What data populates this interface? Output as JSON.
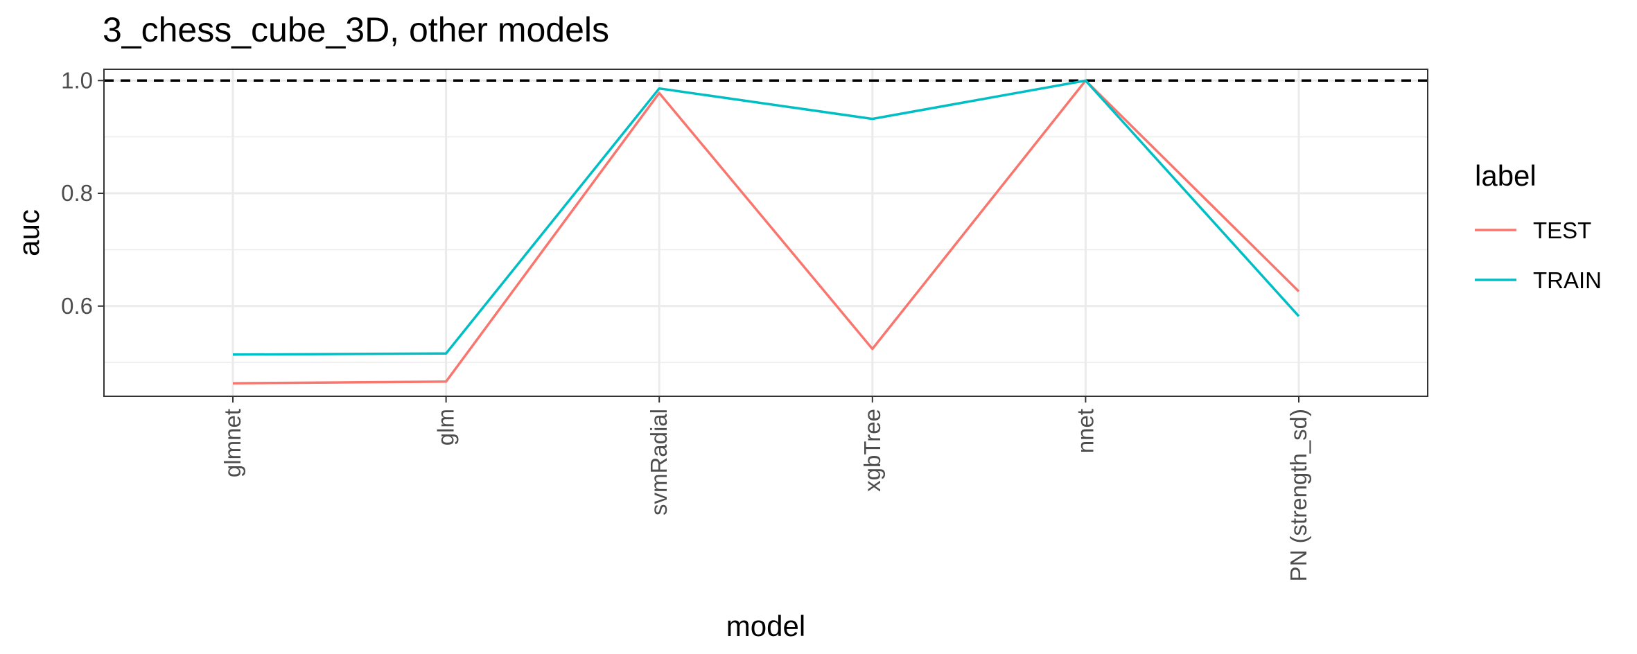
{
  "chart_data": {
    "type": "line",
    "title": "3_chess_cube_3D, other models",
    "xlabel": "model",
    "ylabel": "auc",
    "categories": [
      "glmnet",
      "glm",
      "svmRadial",
      "xgbTree",
      "nnet",
      "PN (strength_sd)"
    ],
    "ylim": [
      0.44,
      1.02
    ],
    "yticks": [
      0.6,
      0.8,
      1.0
    ],
    "ytick_labels": [
      "0.6",
      "0.8",
      "1.0"
    ],
    "reference_line": {
      "y": 1.0,
      "style": "dashed",
      "color": "#000000"
    },
    "grid": true,
    "legend": {
      "title": "label",
      "position": "right"
    },
    "series": [
      {
        "name": "TEST",
        "color": "#F8766D",
        "values": [
          0.463,
          0.466,
          0.978,
          0.524,
          1.0,
          0.626
        ]
      },
      {
        "name": "TRAIN",
        "color": "#00BFC4",
        "values": [
          0.514,
          0.516,
          0.986,
          0.932,
          1.0,
          0.582
        ]
      }
    ]
  }
}
